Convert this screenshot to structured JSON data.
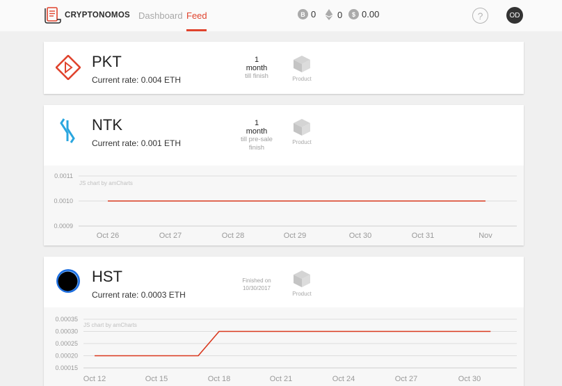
{
  "header": {
    "logo_text": "CRYPTONOMOS",
    "nav": {
      "dashboard": "Dashboard",
      "feed": "Feed"
    },
    "balances": [
      {
        "symbol": "B",
        "value": "0"
      },
      {
        "symbol": "eth",
        "value": "0"
      },
      {
        "symbol": "$",
        "value": "0.00"
      }
    ],
    "help_symbol": "?",
    "avatar_initials": "OD",
    "accent_color": "#e0432d"
  },
  "cards": [
    {
      "name": "PKT",
      "rate_label": "Current rate: 0.004 ETH",
      "timer": {
        "number": "1",
        "unit": "month",
        "sub": "till finish"
      },
      "product_label": "Product",
      "icon": "pkt-diamond-icon"
    },
    {
      "name": "NTK",
      "rate_label": "Current rate: 0.001 ETH",
      "timer": {
        "number": "1",
        "unit": "month",
        "sub_line1": "till pre-sale",
        "sub_line2": "finish"
      },
      "product_label": "Product",
      "icon": "ntk-logo-icon",
      "chart_credit": "JS chart by amCharts"
    },
    {
      "name": "HST",
      "rate_label": "Current rate: 0.0003 ETH",
      "finished_line1": "Finished on",
      "finished_line2": "10/30/2017",
      "product_label": "Product",
      "icon": "hst-orb-icon",
      "chart_credit": "JS chart by amCharts"
    }
  ],
  "chart_data": [
    {
      "type": "line",
      "title": "",
      "xlabel": "",
      "ylabel": "",
      "x_ticks": [
        "Oct 26",
        "Oct 27",
        "Oct 28",
        "Oct 29",
        "Oct 30",
        "Oct 31",
        "Nov"
      ],
      "y_ticks": [
        "0.0011",
        "0.0010",
        "0.0009"
      ],
      "ylim": [
        0.0009,
        0.0011
      ],
      "grid": true,
      "series": [
        {
          "color": "#d9381e",
          "points": [
            [
              "Oct 26",
              0.001
            ],
            [
              "Nov",
              0.001
            ]
          ]
        }
      ]
    },
    {
      "type": "line",
      "title": "",
      "xlabel": "",
      "ylabel": "",
      "x_ticks": [
        "Oct 12",
        "Oct 15",
        "Oct 18",
        "Oct 21",
        "Oct 24",
        "Oct 27",
        "Oct 30"
      ],
      "y_ticks": [
        "0.00035",
        "0.00030",
        "0.00025",
        "0.00020",
        "0.00015"
      ],
      "ylim": [
        0.00015,
        0.00035
      ],
      "grid": true,
      "series": [
        {
          "color": "#d9381e",
          "points": [
            [
              "Oct 12",
              0.0002
            ],
            [
              "Oct 17",
              0.0002
            ],
            [
              "Oct 18",
              0.0003
            ],
            [
              "Oct 31",
              0.0003
            ]
          ]
        }
      ]
    }
  ]
}
